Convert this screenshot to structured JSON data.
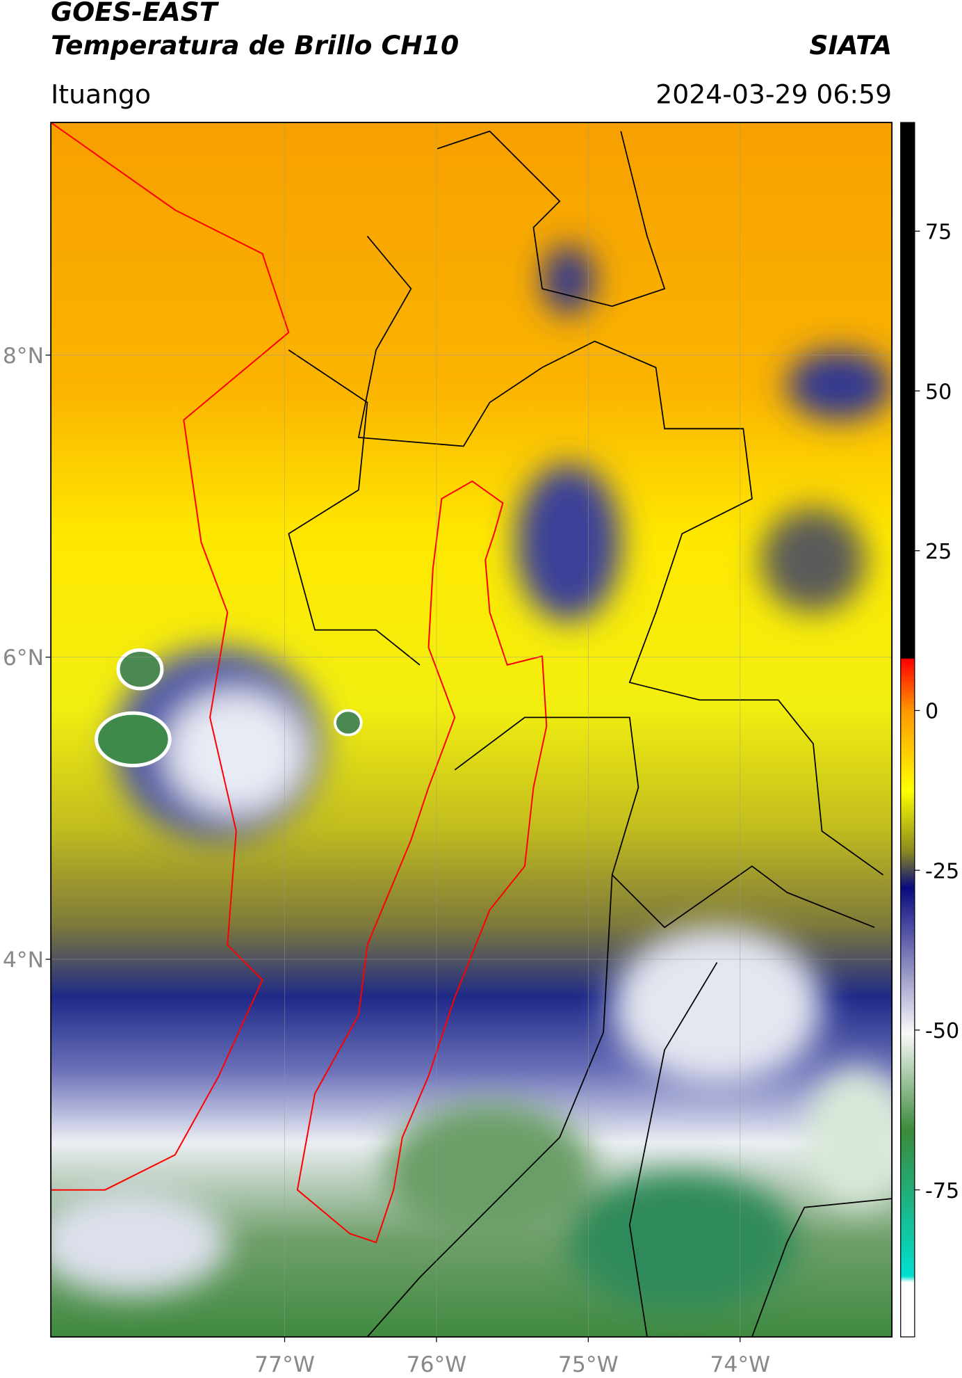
{
  "header": {
    "title_line1": "GOES-EAST",
    "title_line2": "Temperatura de Brillo CH10",
    "organization": "SIATA",
    "location": "Ituango",
    "timestamp": "2024-03-29 06:59"
  },
  "map": {
    "xlim": [
      -78.54,
      -73.0
    ],
    "ylim": [
      1.5,
      9.54
    ],
    "xticks": [
      {
        "value": -77,
        "label": "77°W"
      },
      {
        "value": -76,
        "label": "76°W"
      },
      {
        "value": -75,
        "label": "75°W"
      },
      {
        "value": -74,
        "label": "74°W"
      }
    ],
    "yticks": [
      {
        "value": 8,
        "label": "8°N"
      },
      {
        "value": 6,
        "label": "6°N"
      },
      {
        "value": 4,
        "label": "4°N"
      }
    ],
    "grid": true
  },
  "colorbar": {
    "lim": [
      -98,
      92
    ],
    "ticks": [
      75,
      50,
      25,
      0,
      -25,
      -50,
      -75
    ]
  }
}
